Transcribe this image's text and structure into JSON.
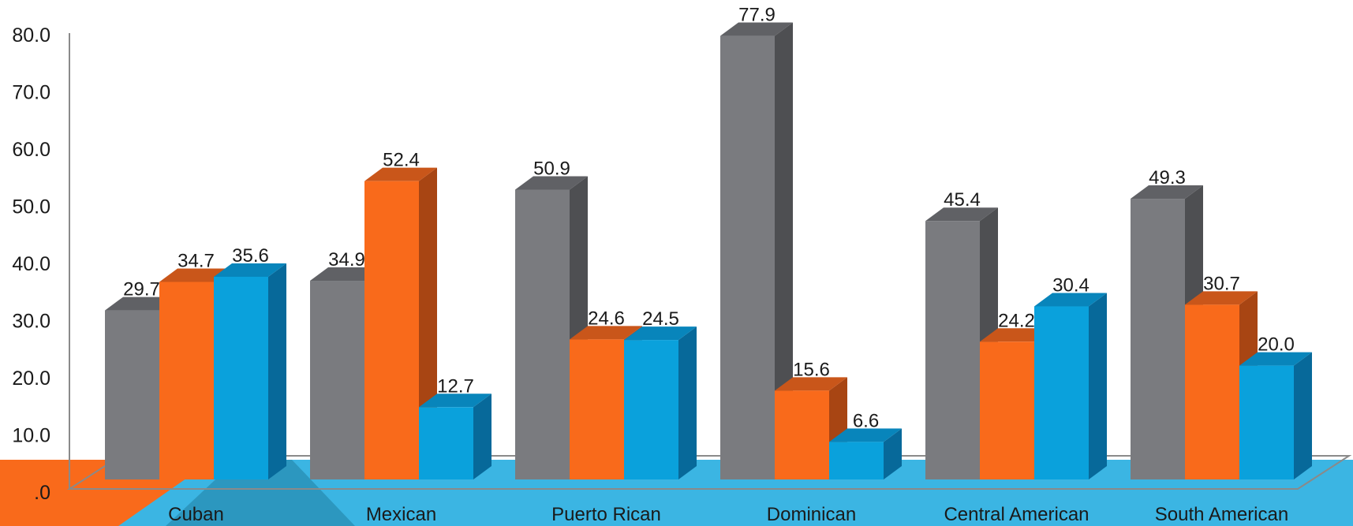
{
  "chart_data": {
    "type": "bar",
    "title": "",
    "xlabel": "",
    "ylabel": "",
    "ylim": [
      0,
      80
    ],
    "y_ticks": [
      ".0",
      "10.0",
      "20.0",
      "30.0",
      "40.0",
      "50.0",
      "60.0",
      "70.0",
      "80.0"
    ],
    "grid": false,
    "legend": "none",
    "categories": [
      "Cuban",
      "Mexican",
      "Puerto Rican",
      "Dominican",
      "Central American",
      "South American"
    ],
    "series": [
      {
        "values": [
          29.7,
          34.9,
          50.9,
          77.9,
          45.4,
          49.3
        ],
        "color": "#7a7b7f",
        "side_color": "#4e4f52",
        "top_color": "#606165"
      },
      {
        "values": [
          34.7,
          52.4,
          24.6,
          15.6,
          24.2,
          30.7
        ],
        "color": "#f96a1b",
        "side_color": "#a84513",
        "top_color": "#c9561a"
      },
      {
        "values": [
          35.6,
          12.7,
          24.5,
          6.6,
          30.4,
          20.0
        ],
        "color": "#0aa1dc",
        "side_color": "#07699a",
        "top_color": "#0885bb"
      }
    ],
    "data_labels": [
      [
        "29.7",
        "34.9",
        "50.9",
        "77.9",
        "45.4",
        "49.3"
      ],
      [
        "34.7",
        "52.4",
        "24.6",
        "15.6",
        "24.2",
        "30.7"
      ],
      [
        "35.6",
        "12.7",
        "24.5",
        "6.6",
        "30.4",
        "20.0"
      ]
    ],
    "floor_color": "#3bb5e3",
    "accent_color": "#f96a1b"
  }
}
